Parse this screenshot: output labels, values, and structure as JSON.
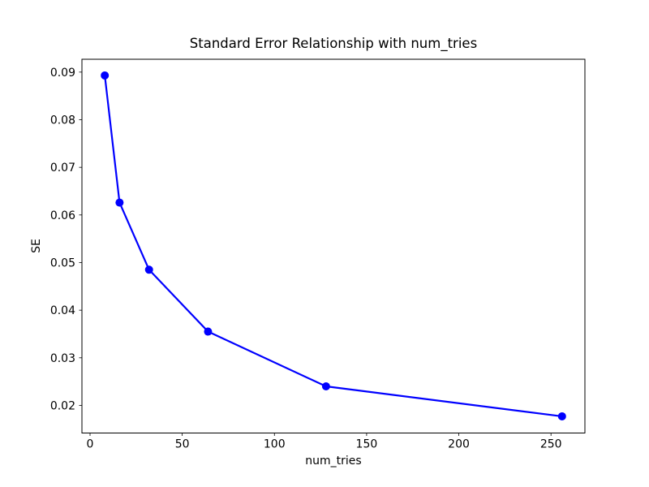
{
  "chart_data": {
    "type": "line",
    "title": "Standard Error Relationship with num_tries",
    "xlabel": "num_tries",
    "ylabel": "SE",
    "series": [
      {
        "name": "SE",
        "x": [
          8,
          16,
          32,
          64,
          128,
          256
        ],
        "y": [
          0.0893,
          0.0626,
          0.0485,
          0.0355,
          0.024,
          0.0177
        ],
        "color": "#0000ff",
        "marker": "circle",
        "marker_radius": 5,
        "line_width": 2.2
      }
    ],
    "xlim": [
      -4.4,
      268.4
    ],
    "ylim": [
      0.0142,
      0.0927
    ],
    "xticks": [
      0,
      50,
      100,
      150,
      200,
      250
    ],
    "xtick_labels": [
      "0",
      "50",
      "100",
      "150",
      "200",
      "250"
    ],
    "yticks": [
      0.02,
      0.03,
      0.04,
      0.05,
      0.06,
      0.07,
      0.08,
      0.09
    ],
    "ytick_labels": [
      "0.02",
      "0.03",
      "0.04",
      "0.05",
      "0.06",
      "0.07",
      "0.08",
      "0.09"
    ],
    "grid": false,
    "legend": null,
    "background_color": "#ffffff",
    "spine_color": "#000000",
    "text_color": "#000000"
  }
}
